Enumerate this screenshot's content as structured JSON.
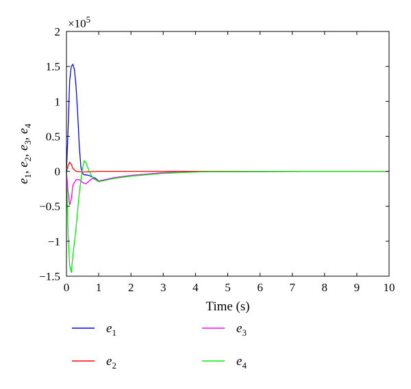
{
  "chart_data": {
    "type": "line",
    "title": "",
    "xlabel": "Time (s)",
    "ylabel": "e1, e2, e3, e4",
    "y_multiplier": "×10",
    "y_multiplier_exp": "5",
    "xlim": [
      0,
      10
    ],
    "ylim": [
      -1.5,
      2
    ],
    "x_ticks": [
      0,
      1,
      2,
      3,
      4,
      5,
      6,
      7,
      8,
      9,
      10
    ],
    "y_ticks": [
      -1.5,
      -1,
      -0.5,
      0,
      0.5,
      1,
      1.5,
      2
    ],
    "y_tick_labels": [
      "−1.5",
      "−1",
      "−0.5",
      "0",
      "0.5",
      "1",
      "1.5",
      "2"
    ],
    "grid": false,
    "legend_placement": "bottom",
    "series": [
      {
        "name": "e1",
        "base": "e",
        "sub": "1",
        "color": "#0000ff",
        "x": [
          0,
          0.05,
          0.1,
          0.15,
          0.2,
          0.25,
          0.3,
          0.35,
          0.4,
          0.45,
          0.5,
          0.55,
          0.6,
          0.7,
          0.8,
          0.9,
          1.0,
          1.2,
          1.5,
          2,
          3,
          4.3,
          10
        ],
        "y": [
          0,
          0.6,
          1.3,
          1.5,
          1.53,
          1.45,
          1.2,
          0.8,
          0.35,
          0.05,
          -0.03,
          -0.05,
          -0.05,
          -0.06,
          -0.08,
          -0.1,
          -0.14,
          -0.12,
          -0.09,
          -0.06,
          -0.02,
          -0.005,
          0
        ]
      },
      {
        "name": "e2",
        "base": "e",
        "sub": "2",
        "color": "#ff0000",
        "x": [
          0,
          0.05,
          0.1,
          0.15,
          0.2,
          0.3,
          0.5,
          1,
          2,
          10
        ],
        "y": [
          0,
          0.08,
          0.13,
          0.1,
          0.04,
          0.0,
          -0.01,
          0.0,
          0.0,
          0
        ]
      },
      {
        "name": "e3",
        "base": "e",
        "sub": "3",
        "color": "#ff00ff",
        "x": [
          0,
          0.05,
          0.1,
          0.15,
          0.2,
          0.3,
          0.4,
          0.5,
          0.6,
          0.7,
          0.8,
          0.9,
          1.0,
          1.2,
          1.5,
          2,
          3,
          4.3,
          10
        ],
        "y": [
          0,
          -0.3,
          -0.48,
          -0.4,
          -0.2,
          -0.12,
          -0.12,
          -0.16,
          -0.18,
          -0.14,
          -0.1,
          -0.12,
          -0.14,
          -0.12,
          -0.09,
          -0.06,
          -0.02,
          -0.005,
          0
        ]
      },
      {
        "name": "e4",
        "base": "e",
        "sub": "4",
        "color": "#00ee00",
        "x": [
          0,
          0.05,
          0.1,
          0.15,
          0.2,
          0.25,
          0.3,
          0.4,
          0.5,
          0.55,
          0.6,
          0.7,
          0.8,
          0.9,
          1.0,
          1.2,
          1.5,
          2,
          3,
          4.3,
          10
        ],
        "y": [
          0,
          -0.9,
          -1.35,
          -1.45,
          -1.2,
          -1.0,
          -0.8,
          -0.3,
          0.05,
          0.15,
          0.13,
          0.0,
          -0.08,
          -0.12,
          -0.15,
          -0.13,
          -0.1,
          -0.07,
          -0.03,
          -0.005,
          0
        ]
      }
    ]
  }
}
